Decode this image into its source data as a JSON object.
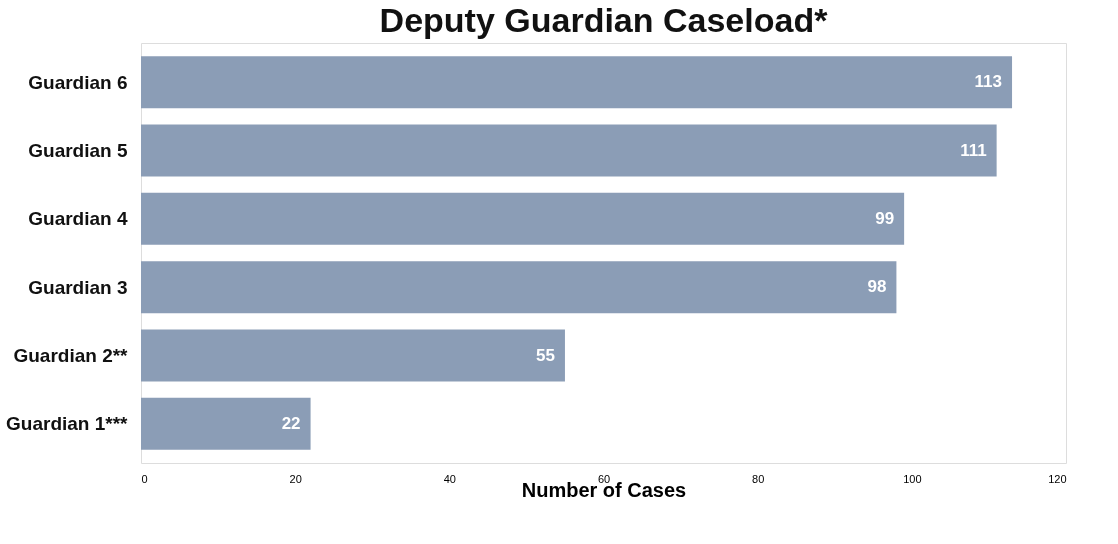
{
  "chart_data": {
    "type": "bar",
    "orientation": "horizontal",
    "title": "Deputy Guardian Caseload*",
    "xlabel": "Number of Cases",
    "categories": [
      "Guardian 6",
      "Guardian 5",
      "Guardian 4",
      "Guardian 3",
      "Guardian 2**",
      "Guardian 1***"
    ],
    "values": [
      113,
      111,
      99,
      98,
      55,
      22
    ],
    "color": "#8b9db6",
    "data_labels": true,
    "xlim": [
      0,
      120
    ],
    "xticks": [
      0,
      20,
      40,
      60,
      80,
      100,
      120
    ],
    "grid": false
  }
}
